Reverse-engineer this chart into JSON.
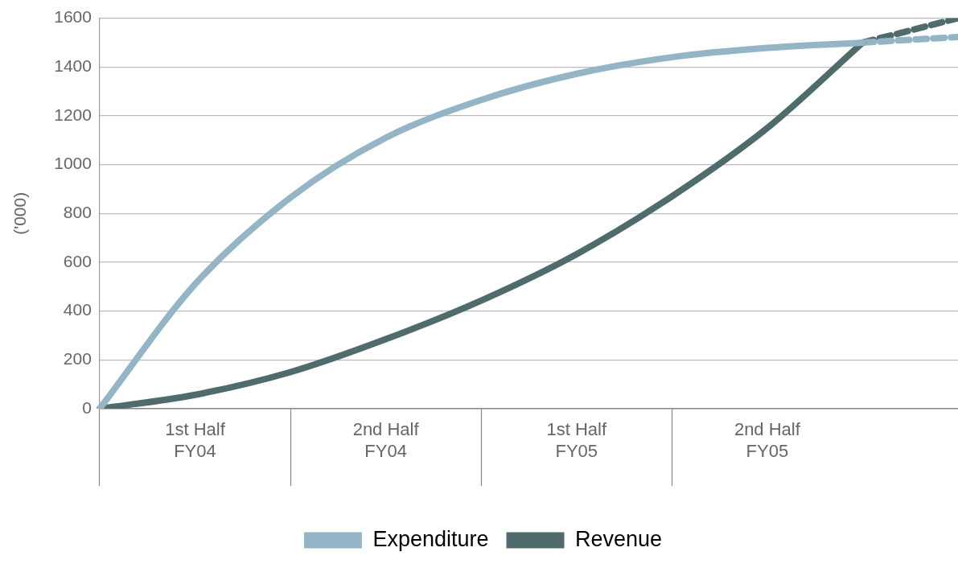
{
  "chart_data": {
    "type": "line",
    "ylabel": "('000)",
    "categories": [
      null,
      "1st Half FY04",
      null,
      "2nd Half FY04",
      null,
      "1st Half FY05",
      null,
      "2nd Half FY05",
      null,
      null
    ],
    "ylim": [
      0,
      1600
    ],
    "yticks": [
      0,
      200,
      400,
      600,
      800,
      1000,
      1200,
      1400,
      1600
    ],
    "grid": "y",
    "legend": "bottom",
    "marker": "none",
    "series": [
      {
        "name": "Expenditure",
        "color": "#93b5c6",
        "line_style": "solid",
        "values": [
          0,
          510,
          865,
          1110,
          1265,
          1372,
          1440,
          1478,
          1500,
          null
        ]
      },
      {
        "name": "Revenue",
        "color": "#4f6b6b",
        "line_style": "solid",
        "values": [
          0,
          57,
          150,
          285,
          443,
          633,
          870,
          1150,
          1500,
          null
        ]
      },
      {
        "color": "#93b5c6",
        "line_style": "dashed",
        "values": [
          null,
          null,
          null,
          null,
          null,
          null,
          null,
          null,
          1500,
          1523
        ]
      },
      {
        "color": "#4f6b6b",
        "line_style": "dashed",
        "values": [
          null,
          null,
          null,
          null,
          null,
          null,
          null,
          null,
          1500,
          1600
        ]
      }
    ]
  }
}
